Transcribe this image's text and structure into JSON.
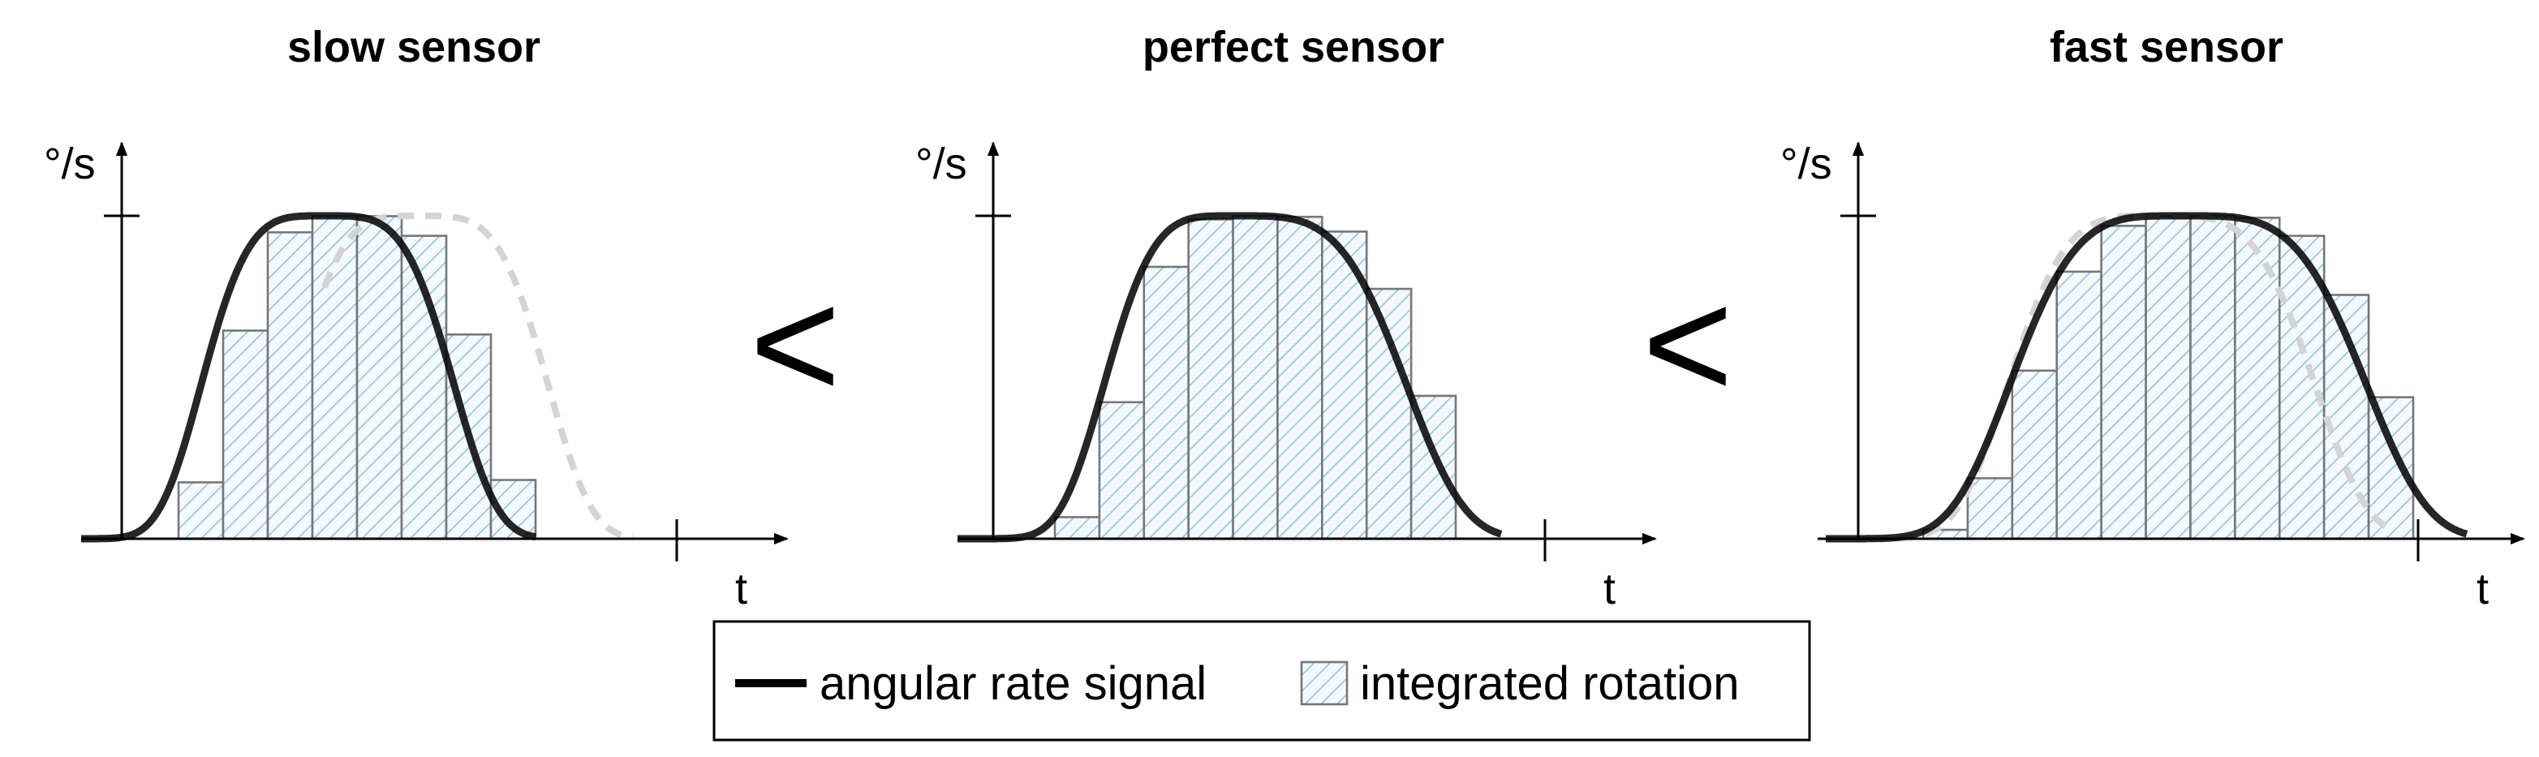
{
  "panels": [
    {
      "title": "slow sensor",
      "y_label": "°/s",
      "x_label": "t"
    },
    {
      "title": "perfect sensor",
      "y_label": "°/s",
      "x_label": "t"
    },
    {
      "title": "fast sensor",
      "y_label": "°/s",
      "x_label": "t"
    }
  ],
  "comparators": [
    "<",
    "<"
  ],
  "legend": {
    "items": [
      "angular rate signal",
      "integrated rotation"
    ]
  }
}
